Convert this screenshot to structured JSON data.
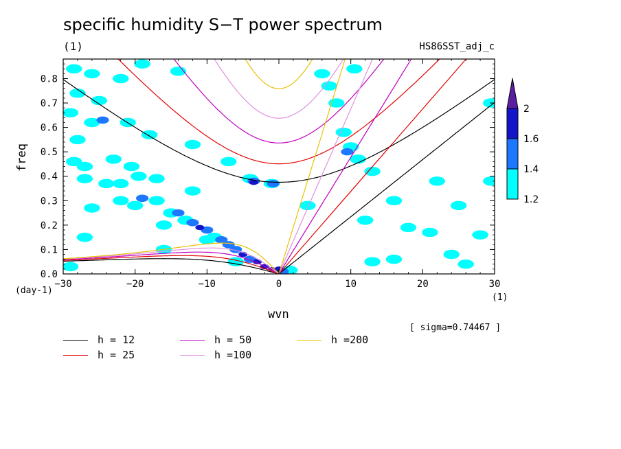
{
  "chart_data": {
    "type": "heatmap",
    "title": "specific humidity S−T power spectrum",
    "subtitle": "(1)",
    "run_name": "HS86SST_adj_c",
    "xlabel": "wvn",
    "ylabel": "freq",
    "x_unit": "(1)",
    "y_unit": "(day-1)",
    "xlim": [
      -30,
      30
    ],
    "ylim": [
      0,
      0.88
    ],
    "x_ticks": [
      "−30",
      "−20",
      "−10",
      "0",
      "10",
      "20",
      "30"
    ],
    "x_tick_values": [
      -30,
      -20,
      -10,
      0,
      10,
      20,
      30
    ],
    "y_ticks": [
      "0.0",
      "0.1",
      "0.2",
      "0.3",
      "0.4",
      "0.5",
      "0.6",
      "0.7",
      "0.8"
    ],
    "y_tick_values": [
      0,
      0.1,
      0.2,
      0.3,
      0.4,
      0.5,
      0.6,
      0.7,
      0.8
    ],
    "sigma_note": "[ sigma=0.74467 ]",
    "colorbar": {
      "levels": [
        "1.2",
        "1.4",
        "1.6",
        "2"
      ],
      "level_values": [
        1.2,
        1.4,
        1.6,
        2.0
      ],
      "colors": [
        "#00ffff",
        "#1e78ff",
        "#1414c8",
        "#5a1ea0"
      ]
    },
    "contour_blobs": [
      {
        "x": -28.5,
        "y": 0.84,
        "level": 1
      },
      {
        "x": -26,
        "y": 0.82,
        "level": 1
      },
      {
        "x": -22,
        "y": 0.8,
        "level": 1
      },
      {
        "x": -19,
        "y": 0.86,
        "level": 1
      },
      {
        "x": -14,
        "y": 0.83,
        "level": 1
      },
      {
        "x": -28,
        "y": 0.74,
        "level": 1
      },
      {
        "x": -25,
        "y": 0.71,
        "level": 1
      },
      {
        "x": -29,
        "y": 0.66,
        "level": 1
      },
      {
        "x": -26,
        "y": 0.62,
        "level": 1
      },
      {
        "x": -24.5,
        "y": 0.63,
        "level": 2
      },
      {
        "x": -21,
        "y": 0.62,
        "level": 1
      },
      {
        "x": -18,
        "y": 0.57,
        "level": 1
      },
      {
        "x": -28,
        "y": 0.55,
        "level": 1
      },
      {
        "x": -12,
        "y": 0.53,
        "level": 1
      },
      {
        "x": -28.5,
        "y": 0.46,
        "level": 1
      },
      {
        "x": -27,
        "y": 0.44,
        "level": 1
      },
      {
        "x": -23,
        "y": 0.47,
        "level": 1
      },
      {
        "x": -20.5,
        "y": 0.44,
        "level": 1
      },
      {
        "x": -27,
        "y": 0.39,
        "level": 1
      },
      {
        "x": -24,
        "y": 0.37,
        "level": 1
      },
      {
        "x": -22,
        "y": 0.37,
        "level": 1
      },
      {
        "x": -19.5,
        "y": 0.4,
        "level": 1
      },
      {
        "x": -17,
        "y": 0.39,
        "level": 1
      },
      {
        "x": -12,
        "y": 0.34,
        "level": 1
      },
      {
        "x": -7,
        "y": 0.46,
        "level": 1
      },
      {
        "x": -4,
        "y": 0.39,
        "level": 1
      },
      {
        "x": -3.5,
        "y": 0.38,
        "level": 2
      },
      {
        "x": -3.5,
        "y": 0.375,
        "level": 3
      },
      {
        "x": -1,
        "y": 0.37,
        "level": 1
      },
      {
        "x": -0.8,
        "y": 0.37,
        "level": 2
      },
      {
        "x": -26,
        "y": 0.27,
        "level": 1
      },
      {
        "x": -22,
        "y": 0.3,
        "level": 1
      },
      {
        "x": -20,
        "y": 0.28,
        "level": 1
      },
      {
        "x": -19,
        "y": 0.31,
        "level": 2
      },
      {
        "x": -17,
        "y": 0.3,
        "level": 1
      },
      {
        "x": -15,
        "y": 0.25,
        "level": 1
      },
      {
        "x": -14,
        "y": 0.25,
        "level": 2
      },
      {
        "x": -13,
        "y": 0.22,
        "level": 1
      },
      {
        "x": -12,
        "y": 0.21,
        "level": 2
      },
      {
        "x": -11,
        "y": 0.19,
        "level": 3
      },
      {
        "x": -10,
        "y": 0.18,
        "level": 2
      },
      {
        "x": -9,
        "y": 0.15,
        "level": 1
      },
      {
        "x": -8,
        "y": 0.14,
        "level": 2
      },
      {
        "x": -7,
        "y": 0.12,
        "level": 2
      },
      {
        "x": -6,
        "y": 0.1,
        "level": 2
      },
      {
        "x": -5,
        "y": 0.08,
        "level": 3
      },
      {
        "x": -4,
        "y": 0.06,
        "level": 2
      },
      {
        "x": -3,
        "y": 0.05,
        "level": 3
      },
      {
        "x": -2,
        "y": 0.03,
        "level": 3
      },
      {
        "x": -1,
        "y": 0.02,
        "level": 4
      },
      {
        "x": 0,
        "y": 0.02,
        "level": 3
      },
      {
        "x": 0.5,
        "y": 0.01,
        "level": 2
      },
      {
        "x": 1.5,
        "y": 0.015,
        "level": 1
      },
      {
        "x": -10,
        "y": 0.14,
        "level": 1
      },
      {
        "x": -16,
        "y": 0.2,
        "level": 1
      },
      {
        "x": -6,
        "y": 0.05,
        "level": 1
      },
      {
        "x": -27,
        "y": 0.15,
        "level": 1
      },
      {
        "x": -16,
        "y": 0.1,
        "level": 1
      },
      {
        "x": -29,
        "y": 0.03,
        "level": 1
      },
      {
        "x": 7,
        "y": 0.77,
        "level": 1
      },
      {
        "x": 8,
        "y": 0.7,
        "level": 1
      },
      {
        "x": 9,
        "y": 0.58,
        "level": 1
      },
      {
        "x": 10,
        "y": 0.52,
        "level": 1
      },
      {
        "x": 9.5,
        "y": 0.5,
        "level": 2
      },
      {
        "x": 11,
        "y": 0.47,
        "level": 1
      },
      {
        "x": 6,
        "y": 0.82,
        "level": 1
      },
      {
        "x": 10.5,
        "y": 0.84,
        "level": 1
      },
      {
        "x": 4,
        "y": 0.28,
        "level": 1
      },
      {
        "x": 12,
        "y": 0.22,
        "level": 1
      },
      {
        "x": 13,
        "y": 0.42,
        "level": 1
      },
      {
        "x": 18,
        "y": 0.19,
        "level": 1
      },
      {
        "x": 16,
        "y": 0.3,
        "level": 1
      },
      {
        "x": 24,
        "y": 0.08,
        "level": 1
      },
      {
        "x": 26,
        "y": 0.04,
        "level": 1
      },
      {
        "x": 28,
        "y": 0.16,
        "level": 1
      },
      {
        "x": 29.5,
        "y": 0.38,
        "level": 1
      },
      {
        "x": 29.5,
        "y": 0.7,
        "level": 1
      },
      {
        "x": 21,
        "y": 0.17,
        "level": 1
      },
      {
        "x": 13,
        "y": 0.05,
        "level": 1
      },
      {
        "x": 16,
        "y": 0.06,
        "level": 1
      },
      {
        "x": 22,
        "y": 0.38,
        "level": 1
      },
      {
        "x": 25,
        "y": 0.28,
        "level": 1
      }
    ],
    "dispersion_curves": [
      {
        "label": "h = 12",
        "color": "#000000"
      },
      {
        "label": "h = 25",
        "color": "#e00000"
      },
      {
        "label": "h = 50",
        "color": "#c000c0"
      },
      {
        "label": "h =100",
        "color": "#e090e0"
      },
      {
        "label": "h =200",
        "color": "#e8c000"
      }
    ],
    "grid": false,
    "legend_position": "bottom-left"
  }
}
